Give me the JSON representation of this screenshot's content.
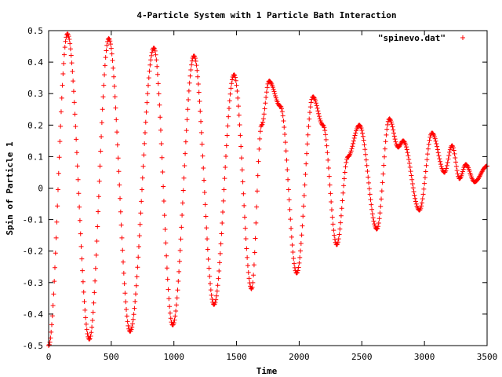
{
  "chart_data": {
    "type": "scatter",
    "title": "4-Particle System with 1 Particle Bath Interaction",
    "xlabel": "Time",
    "ylabel": "Spin of Particle 1",
    "xlim": [
      0,
      3500
    ],
    "ylim": [
      -0.5,
      0.5
    ],
    "x_ticks": [
      0,
      500,
      1000,
      1500,
      2000,
      2500,
      3000,
      3500
    ],
    "x_tick_labels": [
      "0",
      "500",
      "1000",
      "1500",
      "2000",
      "2500",
      "3000",
      "3500"
    ],
    "y_ticks": [
      -0.5,
      -0.4,
      -0.3,
      -0.2,
      -0.1,
      0,
      0.1,
      0.2,
      0.3,
      0.4,
      0.5
    ],
    "y_tick_labels": [
      "-0.5",
      "-0.4",
      "-0.3",
      "-0.2",
      "-0.1",
      "0",
      "0.1",
      "0.2",
      "0.3",
      "0.4",
      "0.5"
    ],
    "grid": false,
    "legend_position": "top-right",
    "series": [
      {
        "name": "\"spinevo.dat\"",
        "marker": "plus",
        "color": "#ff0000",
        "points": [
          [
            0,
            -0.5
          ],
          [
            150,
            0.49
          ],
          [
            325,
            -0.48
          ],
          [
            480,
            0.475
          ],
          [
            650,
            -0.455
          ],
          [
            840,
            0.445
          ],
          [
            990,
            -0.435
          ],
          [
            1160,
            0.42
          ],
          [
            1320,
            -0.37
          ],
          [
            1480,
            0.36
          ],
          [
            1620,
            -0.32
          ],
          [
            1700,
            0.2
          ],
          [
            1760,
            0.34
          ],
          [
            1850,
            0.26
          ],
          [
            1980,
            -0.27
          ],
          [
            2110,
            0.29
          ],
          [
            2190,
            0.2
          ],
          [
            2300,
            -0.18
          ],
          [
            2390,
            0.1
          ],
          [
            2480,
            0.2
          ],
          [
            2620,
            -0.13
          ],
          [
            2720,
            0.22
          ],
          [
            2790,
            0.13
          ],
          [
            2830,
            0.15
          ],
          [
            2960,
            -0.07
          ],
          [
            3060,
            0.175
          ],
          [
            3160,
            0.05
          ],
          [
            3220,
            0.135
          ],
          [
            3280,
            0.03
          ],
          [
            3330,
            0.075
          ],
          [
            3400,
            0.02
          ],
          [
            3500,
            0.07
          ]
        ]
      }
    ]
  }
}
